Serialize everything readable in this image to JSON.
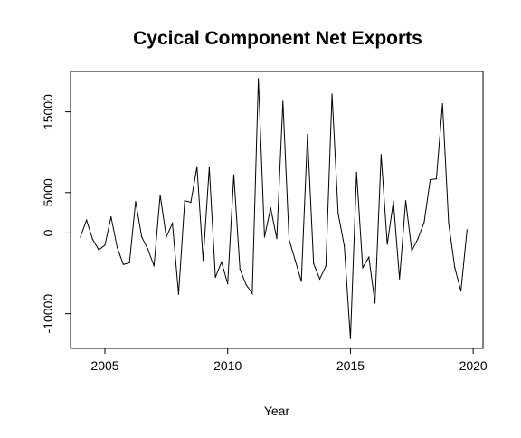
{
  "chart_data": {
    "type": "line",
    "title": "Cycical Component Net Exports",
    "xlabel": "Year",
    "ylabel": "",
    "xlim": [
      2003.6,
      2020.4
    ],
    "ylim": [
      -14300,
      20000
    ],
    "xticks": [
      2005,
      2010,
      2015,
      2020
    ],
    "yticks": [
      -10000,
      0,
      5000,
      15000
    ],
    "grid": false,
    "legend": "none",
    "line_color": "#000000",
    "series": [
      {
        "x": [
          2004.0,
          2004.25,
          2004.5,
          2004.75,
          2005.0,
          2005.25,
          2005.5,
          2005.75,
          2006.0,
          2006.25,
          2006.5,
          2006.75,
          2007.0,
          2007.25,
          2007.5,
          2007.75,
          2008.0,
          2008.25,
          2008.5,
          2008.75,
          2009.0,
          2009.25,
          2009.5,
          2009.75,
          2010.0,
          2010.25,
          2010.5,
          2010.75,
          2011.0,
          2011.25,
          2011.5,
          2011.75,
          2012.0,
          2012.25,
          2012.5,
          2012.75,
          2013.0,
          2013.25,
          2013.5,
          2013.75,
          2014.0,
          2014.25,
          2014.5,
          2014.75,
          2015.0,
          2015.25,
          2015.5,
          2015.75,
          2016.0,
          2016.25,
          2016.5,
          2016.75,
          2017.0,
          2017.25,
          2017.5,
          2017.75,
          2018.0,
          2018.25,
          2018.5,
          2018.75,
          2019.0,
          2019.25,
          2019.5,
          2019.75
        ],
        "values": [
          -500,
          1600,
          -800,
          -2100,
          -1500,
          2000,
          -1800,
          -3900,
          -3700,
          3900,
          -500,
          -2000,
          -4100,
          4700,
          -500,
          1200,
          -7600,
          4000,
          3800,
          8200,
          -3400,
          8100,
          -5500,
          -3600,
          -6300,
          7200,
          -4500,
          -6400,
          -7500,
          19100,
          -500,
          3100,
          -700,
          16300,
          -800,
          -3400,
          -6000,
          12200,
          -3800,
          -5700,
          -4100,
          17200,
          2400,
          -1600,
          -13100,
          7500,
          -4300,
          -3000,
          -8700,
          9700,
          -1400,
          3900,
          -5700,
          4000,
          -2200,
          -700,
          1300,
          6600,
          6700,
          16000,
          1200,
          -4300,
          -7200,
          400
        ]
      }
    ]
  }
}
